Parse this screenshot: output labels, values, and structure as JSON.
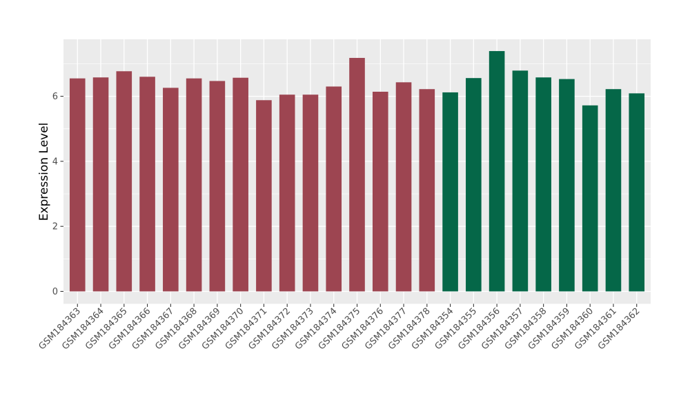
{
  "chart_data": {
    "type": "bar",
    "title": "",
    "xlabel": "",
    "ylabel": "Expression Level",
    "ylim": [
      0,
      7.75
    ],
    "yticks": [
      "0",
      "2",
      "4",
      "6"
    ],
    "ytick_values": [
      0,
      2,
      4,
      6
    ],
    "minor_tick_values": [
      1,
      3,
      5,
      7
    ],
    "grid": "major and minor horizontal white lines plus vertical white line at each category, on gray panel",
    "legend_position": "none",
    "categories": [
      "GSM184363",
      "GSM184364",
      "GSM184365",
      "GSM184366",
      "GSM184367",
      "GSM184368",
      "GSM184369",
      "GSM184370",
      "GSM184371",
      "GSM184372",
      "GSM184373",
      "GSM184374",
      "GSM184375",
      "GSM184376",
      "GSM184377",
      "GSM184378",
      "GSM184354",
      "GSM184355",
      "GSM184356",
      "GSM184357",
      "GSM184358",
      "GSM184359",
      "GSM184360",
      "GSM184361",
      "GSM184362"
    ],
    "values": [
      6.55,
      6.58,
      6.77,
      6.6,
      6.26,
      6.55,
      6.47,
      6.57,
      5.88,
      6.05,
      6.05,
      6.3,
      7.18,
      6.14,
      6.43,
      6.22,
      6.12,
      6.56,
      7.39,
      6.79,
      6.58,
      6.53,
      5.72,
      6.22,
      6.09
    ],
    "bar_groups": [
      0,
      0,
      0,
      0,
      0,
      0,
      0,
      0,
      0,
      0,
      0,
      0,
      0,
      0,
      0,
      0,
      1,
      1,
      1,
      1,
      1,
      1,
      1,
      1,
      1
    ],
    "series": [
      {
        "name": "GSM184363-GSM184378",
        "color": "#9D4551"
      },
      {
        "name": "GSM184354-GSM184362",
        "color": "#056748"
      }
    ],
    "colors": {
      "background": "#FFFFFF",
      "panel_bg": "#EBEBEB",
      "grid": "#FFFFFF",
      "tick_label": "#4D4D4D",
      "axis_title": "#000000",
      "tick_mark": "#333333"
    }
  }
}
